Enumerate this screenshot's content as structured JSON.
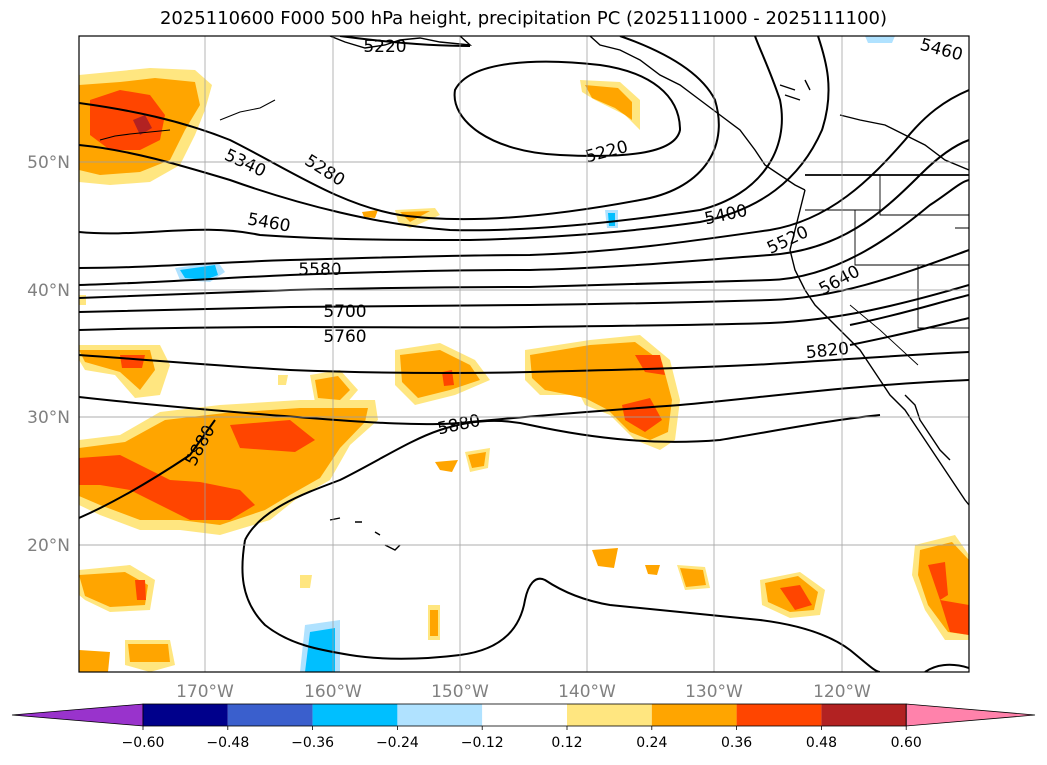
{
  "title": "2025110600 F000 500 hPa height, precipitation PC (2025111000 - 2025111100)",
  "map": {
    "lat_labels": [
      "50°N",
      "40°N",
      "30°N",
      "20°N"
    ],
    "lon_labels": [
      "170°W",
      "160°W",
      "150°W",
      "140°W",
      "130°W",
      "120°W"
    ]
  },
  "height_contours": {
    "units": "m (500 hPa geopotential height)",
    "labels": [
      "5220",
      "5220",
      "5280",
      "5340",
      "5400",
      "5460",
      "5460",
      "5520",
      "5580",
      "5640",
      "5700",
      "5760",
      "5820",
      "5880",
      "5880"
    ]
  },
  "colorbar": {
    "tick_labels": [
      "−0.60",
      "−0.48",
      "−0.36",
      "−0.24",
      "−0.12",
      "0.12",
      "0.24",
      "0.36",
      "0.48",
      "0.60"
    ],
    "colors": [
      "#9933cc",
      "#00008b",
      "#3a5fcd",
      "#00bfff",
      "#b0e2ff",
      "#ffffff",
      "#ffe680",
      "#ffa500",
      "#ff4500",
      "#b22222",
      "#ff82ab"
    ]
  }
}
